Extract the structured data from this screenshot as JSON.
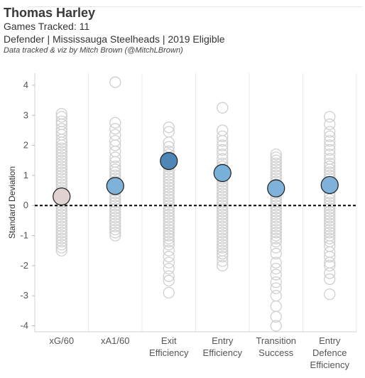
{
  "header": {
    "title": "Thomas Harley",
    "games": "Games Tracked: 11",
    "info": "Defender | Mississauga Steelheads | 2019 Eligible",
    "credit": "Data tracked & viz by Mitch Brown (@MitchLBrown)"
  },
  "chart_data": {
    "type": "scatter",
    "ylabel": "Standard Deviation",
    "ylim": [
      -4.2,
      4.4
    ],
    "yticks": [
      4,
      3,
      2,
      1,
      0,
      -1,
      -2,
      -3,
      -4
    ],
    "reference_line": 0,
    "categories": [
      {
        "lines": [
          "xG/60"
        ]
      },
      {
        "lines": [
          "xA1/60"
        ]
      },
      {
        "lines": [
          "Exit",
          "Efficiency"
        ]
      },
      {
        "lines": [
          "Entry",
          "Efficiency"
        ]
      },
      {
        "lines": [
          "Transition",
          "Success"
        ]
      },
      {
        "lines": [
          "Entry",
          "Defence",
          "Efficiency"
        ]
      }
    ],
    "player_values": [
      0.3,
      0.65,
      1.48,
      1.08,
      0.57,
      0.68
    ],
    "player_colors": [
      "#dfd2d0",
      "#7fb2d8",
      "#4f86b5",
      "#79b0d9",
      "#7fb2d8",
      "#7fb2d8"
    ],
    "background_points": [
      [
        3.05,
        2.95,
        2.8,
        2.7,
        2.55,
        2.45,
        2.35,
        2.2,
        2.1,
        2.0,
        1.9,
        1.8,
        1.7,
        1.6,
        1.5,
        1.4,
        1.3,
        1.2,
        1.1,
        1.0,
        0.9,
        0.8,
        0.7,
        0.6,
        0.5,
        0.4,
        0.2,
        0.1,
        0.0,
        -0.1,
        -0.2,
        -0.3,
        -0.4,
        -0.5,
        -0.6,
        -0.7,
        -0.8,
        -0.9,
        -1.0,
        -1.1,
        -1.2,
        -1.3,
        -1.4,
        -1.5
      ],
      [
        4.1,
        2.75,
        2.55,
        2.35,
        2.15,
        2.0,
        1.8,
        1.6,
        1.45,
        1.3,
        1.2,
        1.1,
        1.0,
        0.9,
        0.8,
        0.5,
        0.4,
        0.3,
        0.2,
        0.1,
        0.0,
        -0.1,
        -0.2,
        -0.3,
        -0.4,
        -0.5,
        -0.6,
        -0.7,
        -0.8,
        -0.9,
        -1.0
      ],
      [
        2.6,
        2.45,
        2.1,
        1.95,
        1.8,
        1.7,
        1.3,
        1.2,
        1.1,
        1.0,
        0.9,
        0.8,
        0.7,
        0.6,
        0.5,
        0.4,
        0.3,
        0.2,
        0.1,
        0.0,
        -0.1,
        -0.2,
        -0.3,
        -0.4,
        -0.5,
        -0.6,
        -0.7,
        -0.8,
        -0.9,
        -1.0,
        -1.1,
        -1.2,
        -1.3,
        -1.5,
        -1.7,
        -1.9,
        -2.1,
        -2.35,
        -2.5,
        -2.9
      ],
      [
        3.25,
        2.5,
        2.3,
        2.15,
        2.0,
        1.85,
        1.7,
        1.55,
        1.4,
        1.3,
        0.9,
        0.8,
        0.7,
        0.6,
        0.5,
        0.4,
        0.3,
        0.2,
        0.1,
        0.0,
        -0.1,
        -0.2,
        -0.3,
        -0.4,
        -0.5,
        -0.6,
        -0.7,
        -0.8,
        -0.9,
        -1.0,
        -1.1,
        -1.2,
        -1.3,
        -1.4,
        -1.5,
        -1.6,
        -1.7,
        -1.85,
        -2.0
      ],
      [
        1.7,
        1.6,
        1.5,
        1.4,
        1.3,
        1.2,
        1.1,
        1.0,
        0.9,
        0.8,
        0.7,
        0.4,
        0.3,
        0.2,
        0.1,
        0.0,
        -0.1,
        -0.2,
        -0.3,
        -0.4,
        -0.5,
        -0.6,
        -0.7,
        -0.8,
        -0.9,
        -1.0,
        -1.1,
        -1.2,
        -1.4,
        -1.6,
        -1.9,
        -2.1,
        -2.3,
        -2.55,
        -2.75,
        -3.0,
        -3.35,
        -3.7,
        -4.0
      ],
      [
        2.95,
        2.7,
        2.45,
        2.3,
        2.15,
        2.0,
        1.85,
        1.7,
        1.55,
        1.4,
        1.3,
        1.2,
        1.1,
        1.0,
        0.9,
        0.4,
        0.3,
        0.2,
        0.1,
        0.0,
        -0.1,
        -0.2,
        -0.3,
        -0.4,
        -0.5,
        -0.6,
        -0.7,
        -0.8,
        -0.9,
        -1.0,
        -1.1,
        -1.2,
        -1.35,
        -1.55,
        -1.7,
        -1.9,
        -2.0,
        -2.25,
        -2.45,
        -2.95
      ]
    ],
    "grid": "vertical",
    "colors": {
      "background_marker": "#cfcfcf",
      "reference_line": "#000000"
    }
  }
}
